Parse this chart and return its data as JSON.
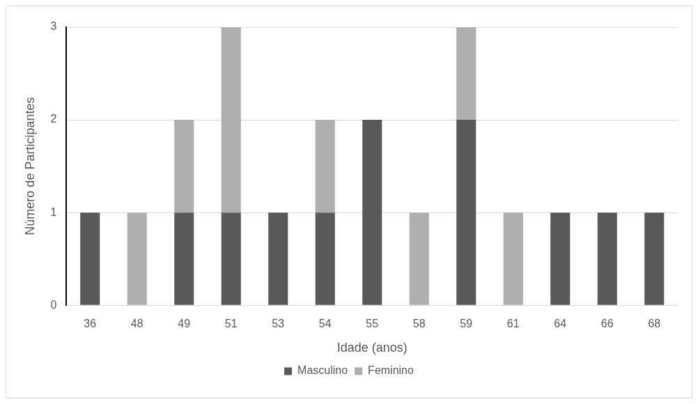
{
  "chart_data": {
    "type": "bar",
    "xlabel": "Idade (anos)",
    "ylabel": "Número de Participantes",
    "categories": [
      "36",
      "48",
      "49",
      "51",
      "53",
      "54",
      "55",
      "58",
      "59",
      "61",
      "64",
      "66",
      "68"
    ],
    "series": [
      {
        "name": "Masculino",
        "color": "#595959",
        "values": [
          1,
          0,
          1,
          1,
          1,
          1,
          2,
          0,
          2,
          0,
          1,
          1,
          1
        ]
      },
      {
        "name": "Feminino",
        "color": "#afafaf",
        "values": [
          0,
          1,
          1,
          2,
          0,
          1,
          0,
          1,
          1,
          1,
          0,
          0,
          0
        ]
      }
    ],
    "stacked": true,
    "ylim": [
      0,
      3
    ],
    "yticks": [
      0,
      1,
      2,
      3
    ],
    "grid": "y",
    "legend": "bottom"
  }
}
